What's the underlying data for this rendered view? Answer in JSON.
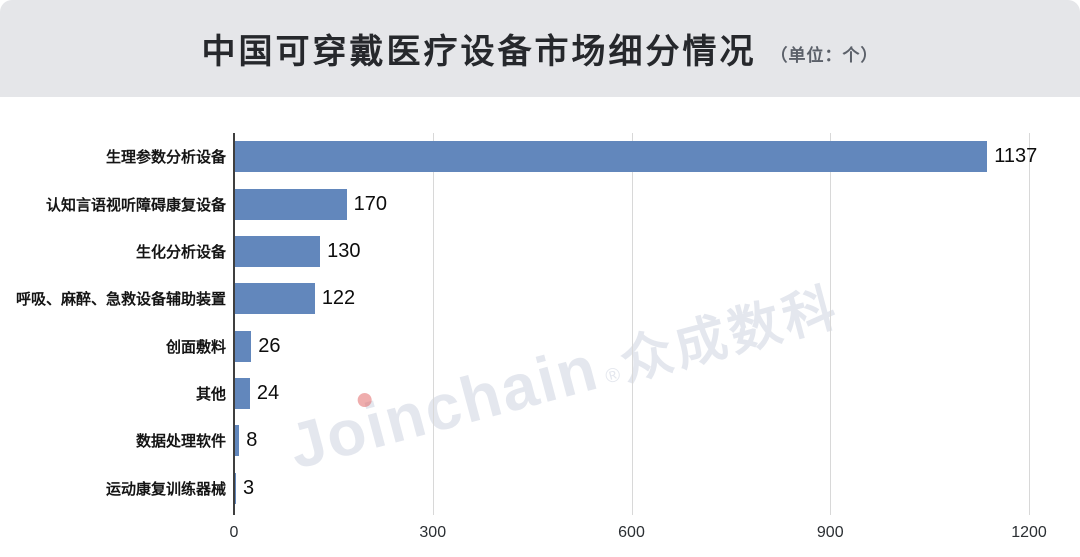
{
  "header": {
    "title": "中国可穿戴医疗设备市场细分情况",
    "unit_label": "（单位：个）"
  },
  "watermark": {
    "latin": "Joinchain",
    "reg_mark": "®",
    "cjk": "众成数科"
  },
  "chart_data": {
    "type": "bar",
    "orientation": "horizontal",
    "title": "中国可穿戴医疗设备市场细分情况",
    "unit": "个",
    "categories": [
      "生理参数分析设备",
      "认知言语视听障碍康复设备",
      "生化分析设备",
      "呼吸、麻醉、急救设备辅助装置",
      "创面敷料",
      "其他",
      "数据处理软件",
      "运动康复训练器械"
    ],
    "values": [
      1137,
      170,
      130,
      122,
      26,
      24,
      8,
      3
    ],
    "xlim": [
      0,
      1200
    ],
    "xticks": [
      0,
      300,
      600,
      900,
      1200
    ],
    "grid": "vertical-gridlines",
    "legend": "none",
    "value_labels": true,
    "bar_color": "#6287bc"
  },
  "colors": {
    "header_bg": "#e5e6e9",
    "bar": "#6287bc",
    "axis": "#3f3f3f",
    "gridline": "#d8d8d8",
    "title_text": "#26282c",
    "unit_text": "#5b6069",
    "label_text": "#141414",
    "watermark": "#aab2c6"
  }
}
